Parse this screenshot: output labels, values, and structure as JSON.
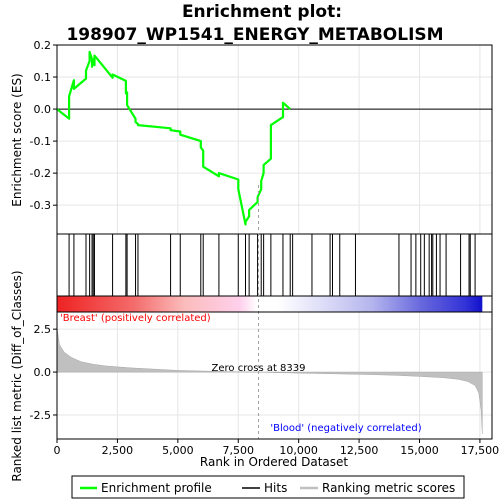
{
  "chart_data": {
    "type": "line",
    "title_line1": "Enrichment plot:",
    "title_line2": "198907_WP1541_ENERGY_METABOLISM",
    "xlabel": "Rank in Ordered Dataset",
    "ylabel_top": "Enrichment score (ES)",
    "ylabel_bottom": "Ranked list metric (Diff_of_Classes)",
    "x_range": [
      0,
      18000
    ],
    "es_ylim": [
      -0.39,
      0.2
    ],
    "metric_ylim": [
      -3.9,
      3.5
    ],
    "x_ticks": [
      {
        "value": 0,
        "label": "0"
      },
      {
        "value": 2500,
        "label": "2,500"
      },
      {
        "value": 5000,
        "label": "5,000"
      },
      {
        "value": 7500,
        "label": "7,500"
      },
      {
        "value": 10000,
        "label": "10,000"
      },
      {
        "value": 12500,
        "label": "12,500"
      },
      {
        "value": 15000,
        "label": "15,000"
      },
      {
        "value": 17500,
        "label": "17,500"
      }
    ],
    "es_ticks": [
      {
        "value": 0.2,
        "label": "0.2"
      },
      {
        "value": 0.1,
        "label": "0.1"
      },
      {
        "value": 0.0,
        "label": "0.0"
      },
      {
        "value": -0.1,
        "label": "-0.1"
      },
      {
        "value": -0.2,
        "label": "-0.2"
      },
      {
        "value": -0.3,
        "label": "-0.3"
      }
    ],
    "metric_ticks": [
      {
        "value": 2.5,
        "label": "2.5"
      },
      {
        "value": 0.0,
        "label": "0.0"
      },
      {
        "value": -2.5,
        "label": "-2.5"
      }
    ],
    "zero_cross_rank": 8339,
    "zero_cross_label": "Zero cross at 8339",
    "positive_label": "'Breast' (positively correlated)",
    "negative_label": "'Blood' (negatively correlated)",
    "n_genes": 17600,
    "hits": [
      500,
      700,
      1200,
      1350,
      1450,
      1500,
      1550,
      2300,
      2850,
      2900,
      3250,
      3350,
      4700,
      5100,
      5950,
      6050,
      6700,
      7500,
      7800,
      7950,
      8300,
      8450,
      8550,
      8850,
      9350,
      9650,
      9750,
      10550,
      11300,
      11400,
      11700,
      12350,
      14150,
      14650,
      14850,
      15050,
      15200,
      15400,
      15500,
      15550,
      15700,
      15850,
      16100,
      16700,
      17050,
      17100,
      17300
    ],
    "es_values": [
      0.0,
      -0.03,
      0.04,
      0.09,
      0.063,
      0.095,
      0.12,
      0.15,
      0.178,
      0.156,
      0.132,
      0.155,
      0.15,
      0.137,
      0.167,
      0.098,
      0.108,
      0.088,
      0.049,
      0.052,
      0.012,
      -0.03,
      -0.04,
      -0.047,
      -0.05,
      -0.06,
      -0.066,
      -0.07,
      -0.08,
      -0.1,
      -0.12,
      -0.13,
      -0.18,
      -0.21,
      -0.2,
      -0.22,
      -0.25,
      -0.36,
      -0.352,
      -0.335,
      -0.315,
      -0.29,
      -0.275,
      -0.25,
      -0.225,
      -0.2,
      -0.175,
      -0.155,
      -0.05,
      -0.025,
      0.02,
      0.0
    ],
    "metric_profile": [
      [
        0,
        2.6
      ],
      [
        100,
        1.6
      ],
      [
        300,
        1.15
      ],
      [
        600,
        0.85
      ],
      [
        1000,
        0.6
      ],
      [
        1500,
        0.45
      ],
      [
        2000,
        0.36
      ],
      [
        3000,
        0.25
      ],
      [
        4000,
        0.17
      ],
      [
        5000,
        0.1
      ],
      [
        6000,
        0.06
      ],
      [
        7000,
        0.03
      ],
      [
        8339,
        0.0
      ],
      [
        9000,
        -0.03
      ],
      [
        10000,
        -0.06
      ],
      [
        11000,
        -0.09
      ],
      [
        12000,
        -0.12
      ],
      [
        13000,
        -0.15
      ],
      [
        14000,
        -0.19
      ],
      [
        15000,
        -0.25
      ],
      [
        16000,
        -0.33
      ],
      [
        16600,
        -0.42
      ],
      [
        17000,
        -0.55
      ],
      [
        17300,
        -0.78
      ],
      [
        17450,
        -1.2
      ],
      [
        17550,
        -2.2
      ],
      [
        17600,
        -3.6
      ]
    ],
    "colors": {
      "es_line": "#00ff00",
      "hit_line": "#000000",
      "metric_fill": "#c0c0c0",
      "positive": "#ff0000",
      "negative": "#0000ff",
      "neutral": "#ffffff",
      "positive_label": "#ff0000",
      "negative_label": "#0000ff",
      "zero_line": "#a0a0a0"
    },
    "legend": [
      {
        "label": "Enrichment profile",
        "kind": "es"
      },
      {
        "label": "Hits",
        "kind": "hit"
      },
      {
        "label": "Ranking metric scores",
        "kind": "metric"
      }
    ],
    "legend_placement": "bottom"
  }
}
